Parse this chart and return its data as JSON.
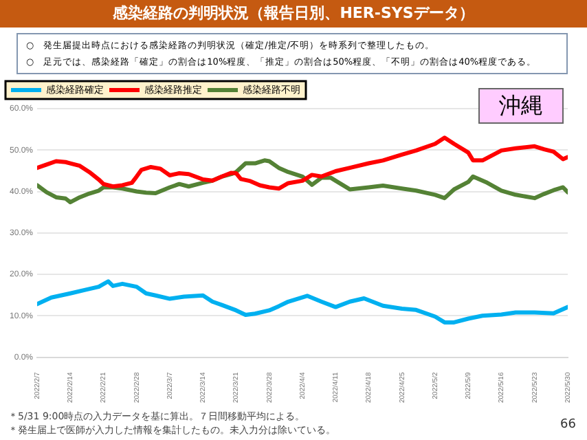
{
  "chart_data": {
    "type": "line",
    "title": "感染経路の判明状況（報告日別、HER-SYSデータ）",
    "annotations": [
      "○　発生届提出時点における感染経路の判明状況（確定/推定/不明）を時系列で整理したもの。",
      "○　足元では、感染経路「確定」の割合は10%程度、「推定」の割合は50%程度、「不明」の割合は40%程度である。",
      "沖縄",
      "＊5/31 9:00時点の入力データを基に算出。７日間移動平均による。",
      "＊発生届上で医師が入力した情報を集計したもの。未入力分は除いている。",
      "66"
    ],
    "xlim": [
      "2022-02-07",
      "2022-05-30"
    ],
    "xticks": [
      {
        "value": "2022-02-07",
        "label": "2022/2/7"
      },
      {
        "value": "2022-02-14",
        "label": "2022/2/14"
      },
      {
        "value": "2022-02-21",
        "label": "2022/2/21"
      },
      {
        "value": "2022-02-28",
        "label": "2022/2/28"
      },
      {
        "value": "2022-03-07",
        "label": "2022/3/7"
      },
      {
        "value": "2022-03-14",
        "label": "2022/3/14"
      },
      {
        "value": "2022-03-21",
        "label": "2022/3/21"
      },
      {
        "value": "2022-03-28",
        "label": "2022/3/28"
      },
      {
        "value": "2022-04-04",
        "label": "2022/4/4"
      },
      {
        "value": "2022-04-11",
        "label": "2022/4/11"
      },
      {
        "value": "2022-04-18",
        "label": "2022/4/18"
      },
      {
        "value": "2022-04-25",
        "label": "2022/4/25"
      },
      {
        "value": "2022-05-02",
        "label": "2022/5/2"
      },
      {
        "value": "2022-05-09",
        "label": "2022/5/9"
      },
      {
        "value": "2022-05-16",
        "label": "2022/5/16"
      },
      {
        "value": "2022-05-23",
        "label": "2022/5/23"
      },
      {
        "value": "2022-05-30",
        "label": "2022/5/30"
      }
    ],
    "ylim": [
      0,
      60
    ],
    "yticks": [
      {
        "value": 0,
        "label": "0.0%"
      },
      {
        "value": 10,
        "label": "10.0%"
      },
      {
        "value": 20,
        "label": "20.0%"
      },
      {
        "value": 30,
        "label": "30.0%"
      },
      {
        "value": 40,
        "label": "40.0%"
      },
      {
        "value": 50,
        "label": "50.0%"
      },
      {
        "value": 60,
        "label": "60.0%"
      }
    ],
    "grid": "y",
    "legend": "top left",
    "marker": "none",
    "line_style": "solid",
    "series": [
      {
        "name": "感染経路確定",
        "color": "#00b0f0",
        "x": [
          "2022-02-07",
          "2022-02-10",
          "2022-02-14",
          "2022-02-17",
          "2022-02-20",
          "2022-02-22",
          "2022-02-23",
          "2022-02-25",
          "2022-02-28",
          "2022-03-02",
          "2022-03-04",
          "2022-03-07",
          "2022-03-10",
          "2022-03-14",
          "2022-03-16",
          "2022-03-18",
          "2022-03-21",
          "2022-03-23",
          "2022-03-25",
          "2022-03-28",
          "2022-03-30",
          "2022-04-01",
          "2022-04-05",
          "2022-04-08",
          "2022-04-11",
          "2022-04-14",
          "2022-04-17",
          "2022-04-21",
          "2022-04-25",
          "2022-04-28",
          "2022-05-02",
          "2022-05-04",
          "2022-05-06",
          "2022-05-09",
          "2022-05-12",
          "2022-05-16",
          "2022-05-19",
          "2022-05-23",
          "2022-05-27",
          "2022-05-30"
        ],
        "values": [
          12.8,
          14.4,
          15.4,
          16.2,
          17.0,
          18.3,
          17.2,
          17.7,
          17.0,
          15.4,
          14.9,
          14.1,
          14.6,
          14.9,
          13.4,
          12.6,
          11.3,
          10.2,
          10.5,
          11.3,
          12.3,
          13.4,
          14.8,
          13.4,
          12.1,
          13.4,
          14.2,
          12.4,
          11.7,
          11.4,
          9.8,
          8.4,
          8.4,
          9.3,
          10.0,
          10.3,
          10.8,
          10.8,
          10.6,
          12.1
        ]
      },
      {
        "name": "感染経路推定",
        "color": "#ff0000",
        "x": [
          "2022-02-07",
          "2022-02-09",
          "2022-02-11",
          "2022-02-13",
          "2022-02-14",
          "2022-02-16",
          "2022-02-18",
          "2022-02-20",
          "2022-02-21",
          "2022-02-23",
          "2022-02-25",
          "2022-02-27",
          "2022-02-28",
          "2022-03-01",
          "2022-03-03",
          "2022-03-05",
          "2022-03-07",
          "2022-03-09",
          "2022-03-11",
          "2022-03-14",
          "2022-03-16",
          "2022-03-18",
          "2022-03-20",
          "2022-03-21",
          "2022-03-22",
          "2022-03-24",
          "2022-03-26",
          "2022-03-28",
          "2022-03-30",
          "2022-04-01",
          "2022-04-04",
          "2022-04-06",
          "2022-04-08",
          "2022-04-11",
          "2022-04-14",
          "2022-04-18",
          "2022-04-21",
          "2022-04-25",
          "2022-04-28",
          "2022-05-02",
          "2022-05-04",
          "2022-05-06",
          "2022-05-09",
          "2022-05-10",
          "2022-05-12",
          "2022-05-16",
          "2022-05-19",
          "2022-05-23",
          "2022-05-25",
          "2022-05-27",
          "2022-05-29",
          "2022-05-30"
        ],
        "values": [
          45.7,
          46.5,
          47.3,
          47.1,
          46.8,
          46.2,
          44.7,
          42.9,
          41.8,
          41.2,
          41.5,
          42.1,
          43.6,
          45.2,
          45.9,
          45.5,
          43.9,
          44.4,
          44.2,
          42.9,
          42.6,
          43.6,
          44.5,
          44.4,
          43.0,
          42.5,
          41.5,
          41.0,
          40.7,
          42.0,
          42.6,
          44.0,
          43.6,
          44.9,
          45.7,
          46.8,
          47.5,
          48.9,
          49.9,
          51.5,
          53.0,
          51.5,
          49.4,
          47.5,
          47.5,
          49.9,
          50.4,
          50.9,
          50.2,
          49.6,
          47.8,
          48.3
        ]
      },
      {
        "name": "感染経路不明",
        "color": "#548235",
        "x": [
          "2022-02-07",
          "2022-02-09",
          "2022-02-11",
          "2022-02-13",
          "2022-02-14",
          "2022-02-16",
          "2022-02-18",
          "2022-02-20",
          "2022-02-21",
          "2022-02-23",
          "2022-02-25",
          "2022-02-28",
          "2022-03-02",
          "2022-03-04",
          "2022-03-07",
          "2022-03-09",
          "2022-03-11",
          "2022-03-14",
          "2022-03-16",
          "2022-03-18",
          "2022-03-20",
          "2022-03-21",
          "2022-03-23",
          "2022-03-25",
          "2022-03-27",
          "2022-03-28",
          "2022-03-30",
          "2022-04-01",
          "2022-04-04",
          "2022-04-06",
          "2022-04-08",
          "2022-04-10",
          "2022-04-11",
          "2022-04-14",
          "2022-04-18",
          "2022-04-21",
          "2022-04-25",
          "2022-04-28",
          "2022-05-02",
          "2022-05-04",
          "2022-05-06",
          "2022-05-09",
          "2022-05-10",
          "2022-05-13",
          "2022-05-16",
          "2022-05-19",
          "2022-05-23",
          "2022-05-25",
          "2022-05-27",
          "2022-05-29",
          "2022-05-30"
        ],
        "values": [
          41.5,
          39.8,
          38.6,
          38.3,
          37.4,
          38.6,
          39.5,
          40.2,
          41.0,
          41.0,
          40.7,
          40.0,
          39.7,
          39.6,
          41.0,
          41.8,
          41.2,
          42.1,
          42.6,
          43.6,
          44.2,
          44.7,
          46.8,
          46.8,
          47.5,
          47.3,
          45.7,
          44.7,
          43.6,
          41.6,
          43.3,
          43.3,
          42.6,
          40.5,
          41.0,
          41.4,
          40.7,
          40.2,
          39.2,
          38.4,
          40.5,
          42.3,
          43.6,
          42.1,
          40.2,
          39.2,
          38.4,
          39.4,
          40.3,
          41.0,
          39.8
        ]
      }
    ]
  }
}
